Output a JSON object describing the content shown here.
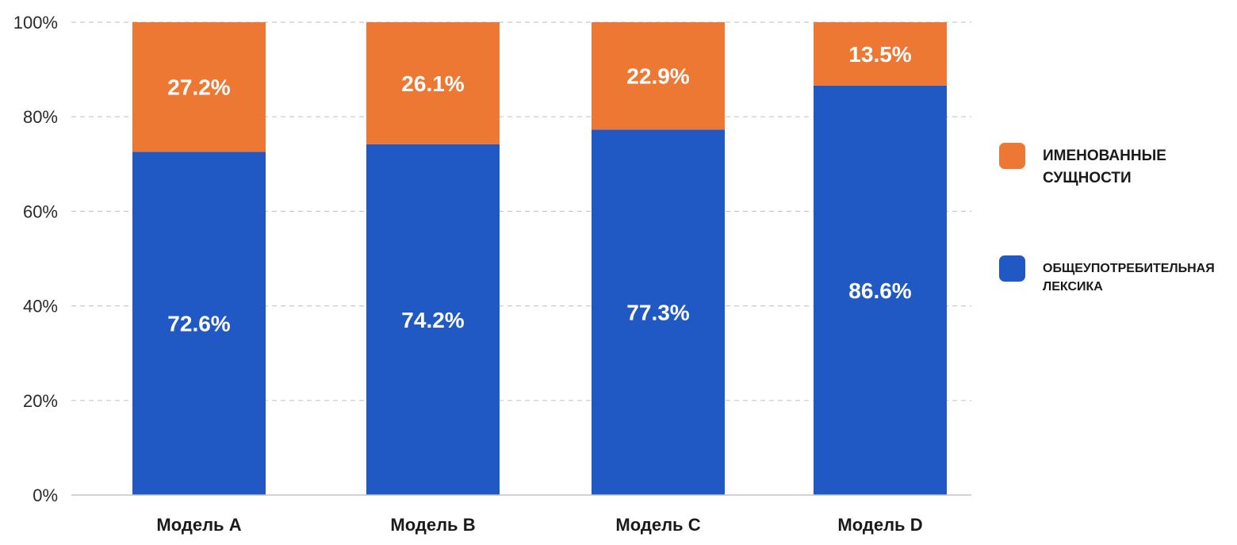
{
  "chart_data": {
    "type": "bar",
    "stacked": true,
    "categories": [
      "Модель A",
      "Модель B",
      "Модель C",
      "Модель D"
    ],
    "series": [
      {
        "name": "ОБЩЕУПОТРЕБИТЕЛЬНАЯ ЛЕКСИКА",
        "values": [
          72.6,
          74.2,
          77.3,
          86.6
        ],
        "labels": [
          "72.6%",
          "74.2%",
          "77.3%",
          "86.6%"
        ],
        "color": "#2159c4"
      },
      {
        "name": "ИМЕНОВАННЫЕ СУЩНОСТИ",
        "values": [
          27.2,
          26.1,
          22.9,
          13.5
        ],
        "labels": [
          "27.2%",
          "26.1%",
          "22.9%",
          "13.5%"
        ],
        "color": "#ec7833"
      }
    ],
    "yticks": [
      "0%",
      "20%",
      "40%",
      "60%",
      "80%",
      "100%"
    ],
    "ylim": [
      0,
      100
    ],
    "grid": true,
    "legend_position": "right",
    "xlabel": "",
    "ylabel": "",
    "title": ""
  },
  "legend": {
    "items": [
      {
        "label": "ИМЕНОВАННЫЕ СУЩНОСТИ",
        "color": "#ec7833"
      },
      {
        "label": "ОБЩЕУПОТРЕБИТЕЛЬНАЯ ЛЕКСИКА",
        "color": "#2159c4"
      }
    ]
  }
}
